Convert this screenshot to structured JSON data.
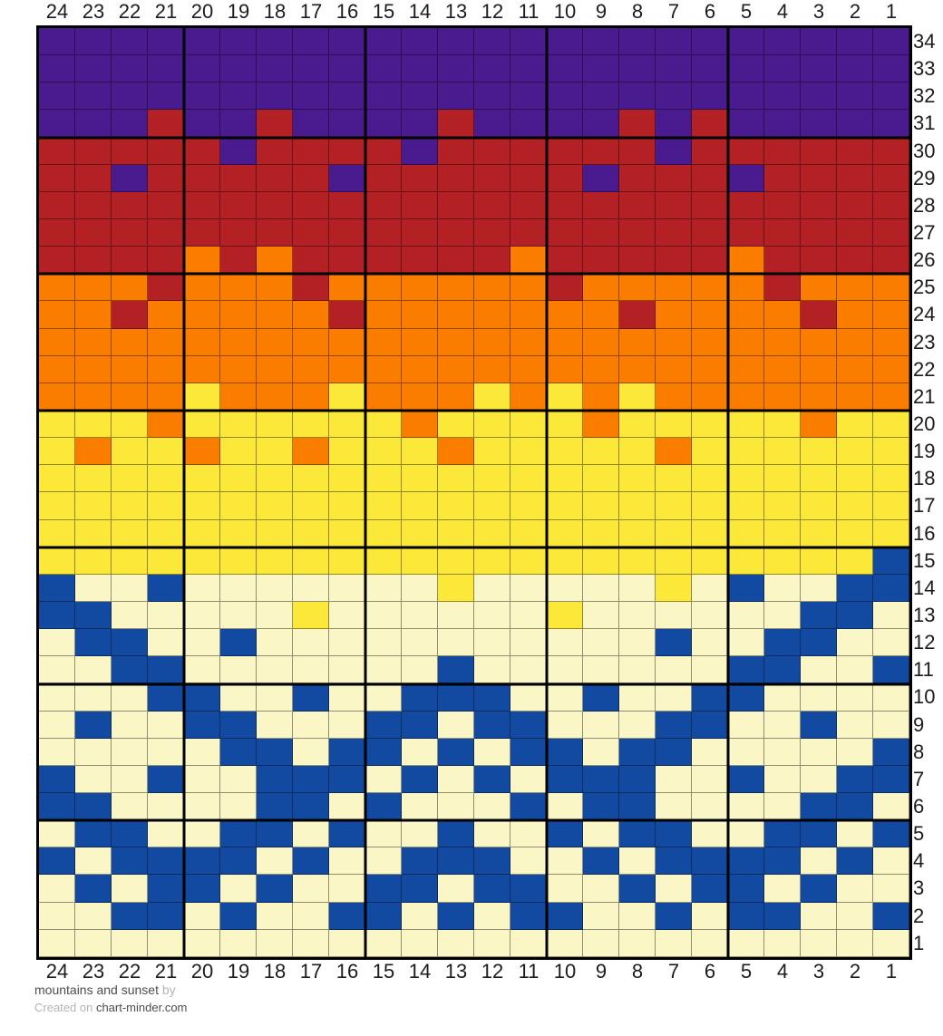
{
  "footer": {
    "title": "mountains and sunset",
    "by_label": "by",
    "created_prefix": "Created on",
    "site": "chart-minder.com"
  },
  "chart_data": {
    "type": "heatmap",
    "title": "mountains and sunset",
    "description": "24-stitch by 34-row colorwork knitting chart with stitch cells; bold gridlines every 5 stitches/rows counted from bottom-right; columns numbered right-to-left, rows numbered bottom-to-top",
    "grid": {
      "columns": 24,
      "rows": 34
    },
    "column_labels": [
      24,
      23,
      22,
      21,
      20,
      19,
      18,
      17,
      16,
      15,
      14,
      13,
      12,
      11,
      10,
      9,
      8,
      7,
      6,
      5,
      4,
      3,
      2,
      1
    ],
    "row_labels": [
      34,
      33,
      32,
      31,
      30,
      29,
      28,
      27,
      26,
      25,
      24,
      23,
      22,
      21,
      20,
      19,
      18,
      17,
      16,
      15,
      14,
      13,
      12,
      11,
      10,
      9,
      8,
      7,
      6,
      5,
      4,
      3,
      2,
      1
    ],
    "bold_gridline_interval": 5,
    "palette": {
      "P": {
        "name": "purple",
        "hex": "#4A1A8F"
      },
      "R": {
        "name": "dark-red",
        "hex": "#B32124"
      },
      "O": {
        "name": "orange",
        "hex": "#FB7D00"
      },
      "Y": {
        "name": "yellow",
        "hex": "#FCE838"
      },
      "C": {
        "name": "cream",
        "hex": "#FAF6C5"
      },
      "B": {
        "name": "blue",
        "hex": "#114AA0"
      }
    },
    "rows_top_to_bottom": [
      {
        "row": 34,
        "cells": "PPPPPPPPPPPPPPPPPPPPPPPP"
      },
      {
        "row": 33,
        "cells": "PPPPPPPPPPPPPPPPPPPPPPPP"
      },
      {
        "row": 32,
        "cells": "PPPPPPPPPPPPPPPPPPPPPPPP"
      },
      {
        "row": 31,
        "cells": "PPPRPPRPPPPRPPPPRPRPPPPP"
      },
      {
        "row": 30,
        "cells": "RRRRRPRRRRPRRRRRRPRRRRRR"
      },
      {
        "row": 29,
        "cells": "RRPRRRRRPRRRRRRPRRRPRRRR"
      },
      {
        "row": 28,
        "cells": "RRRRRRRRRRRRRRRRRRRRRRRR"
      },
      {
        "row": 27,
        "cells": "RRRRRRRRRRRRRRRRRRRRRRRR"
      },
      {
        "row": 26,
        "cells": "RRRRORORRRRRRORRRRRORRRR"
      },
      {
        "row": 25,
        "cells": "OOOROOOROOOOOOROOOOOROOO"
      },
      {
        "row": 24,
        "cells": "OOROOOOOROOOOOOOROOOOROO"
      },
      {
        "row": 23,
        "cells": "OOOOOOOOOOOOOOOOOOOOOOOO"
      },
      {
        "row": 22,
        "cells": "OOOOOOOOOOOOOOOOOOOOOOOO"
      },
      {
        "row": 21,
        "cells": "OOOOYOOOYOOOYOYOYOOOOOOO"
      },
      {
        "row": 20,
        "cells": "YYYOYYYYYYOYYYYOYYYYYOYY"
      },
      {
        "row": 19,
        "cells": "YOYYOYYOYYYOYYYYYOYYYYYY"
      },
      {
        "row": 18,
        "cells": "YYYYYYYYYYYYYYYYYYYYYYYY"
      },
      {
        "row": 17,
        "cells": "YYYYYYYYYYYYYYYYYYYYYYYY"
      },
      {
        "row": 16,
        "cells": "YYYYYYYYYYYYYYYYYYYYYYYY"
      },
      {
        "row": 15,
        "cells": "YYYYYYYYYYYYYYYYYYYYYYYB"
      },
      {
        "row": 14,
        "cells": "BCCBCCCCCCCYCCCCCYCBCCBB"
      },
      {
        "row": 13,
        "cells": "BBCCCCCYCCCCCCYCCCCCCBBC"
      },
      {
        "row": 12,
        "cells": "CBBCCBCCCCCCCCCCCBCCBBCC"
      },
      {
        "row": 11,
        "cells": "CCBBCCCCCCCBCCCCCCCBBCCB"
      },
      {
        "row": 10,
        "cells": "CCCBBCCBCCBBBCCBCCBBCCCC"
      },
      {
        "row": 9,
        "cells": "CBCCBBCCCBBCBBCCCBBCCBCC"
      },
      {
        "row": 8,
        "cells": "CCCCCBBCBBCBCBBCBBCCCCCB"
      },
      {
        "row": 7,
        "cells": "BCCBCCBBBCBCBCBBBCCBCCBB"
      },
      {
        "row": 6,
        "cells": "BBCCCCBBCBCCCBCBBCCCCBBC"
      },
      {
        "row": 5,
        "cells": "CBBCCBBCBCCBCCBCBBCCBBCB"
      },
      {
        "row": 4,
        "cells": "BCBBBBCBCCBBBCCBCBBBBCBC"
      },
      {
        "row": 3,
        "cells": "CBCBBCBCCBBCBBCCBCBBCBCC"
      },
      {
        "row": 2,
        "cells": "CCBBCBCCBBCBCBBCCBCBBCCB"
      },
      {
        "row": 1,
        "cells": "CCCCCCCCCCCCCCCCCCCCCCCC"
      }
    ]
  }
}
